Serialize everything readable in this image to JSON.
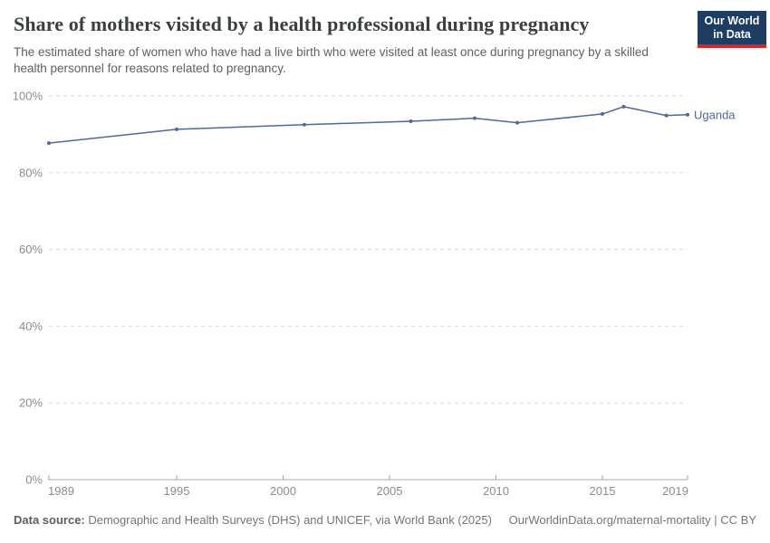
{
  "header": {
    "title": "Share of mothers visited by a health professional during pregnancy",
    "subtitle": "The estimated share of women who have had a live birth who were visited at least once during pregnancy by a skilled health personnel for reasons related to pregnancy.",
    "logo": {
      "line1": "Our World",
      "line2": "in Data"
    }
  },
  "chart_data": {
    "type": "line",
    "title": "Share of mothers visited by a health professional during pregnancy",
    "xlabel": "",
    "ylabel": "",
    "xlim": [
      1989,
      2019
    ],
    "ylim": [
      0,
      100
    ],
    "grid": "horizontal-dashed",
    "legend_position": "end-of-line-label",
    "x_ticks": [
      {
        "year": 1989,
        "label": "1989"
      },
      {
        "year": 1995,
        "label": "1995"
      },
      {
        "year": 2000,
        "label": "2000"
      },
      {
        "year": 2005,
        "label": "2005"
      },
      {
        "year": 2010,
        "label": "2010"
      },
      {
        "year": 2015,
        "label": "2015"
      },
      {
        "year": 2019,
        "label": "2019"
      }
    ],
    "y_ticks": [
      {
        "value": 0,
        "label": "0%"
      },
      {
        "value": 20,
        "label": "20%"
      },
      {
        "value": 40,
        "label": "40%"
      },
      {
        "value": 60,
        "label": "60%"
      },
      {
        "value": 80,
        "label": "80%"
      },
      {
        "value": 100,
        "label": "100%"
      }
    ],
    "series": [
      {
        "name": "Uganda",
        "color": "#4c6a9c",
        "points": [
          [
            1989,
            87.7
          ],
          [
            1995,
            91.3
          ],
          [
            2001,
            92.5
          ],
          [
            2006,
            93.4
          ],
          [
            2009,
            94.2
          ],
          [
            2011,
            93.0
          ],
          [
            2015,
            95.3
          ],
          [
            2016,
            97.2
          ],
          [
            2018,
            94.9
          ],
          [
            2019,
            95.1
          ]
        ]
      }
    ]
  },
  "footer": {
    "datasource_label": "Data source:",
    "datasource_text": " Demographic and Health Surveys (DHS) and UNICEF, via World Bank (2025)",
    "license_text": "OurWorldinData.org/maternal-mortality | CC BY"
  },
  "colors": {
    "line": "#4c6a9c",
    "gridline": "#d9d9d9",
    "axis": "#a8a8a8",
    "tick_label": "#8c8c8c",
    "logo_bg": "#1d3d63",
    "logo_red": "#d8232f"
  }
}
